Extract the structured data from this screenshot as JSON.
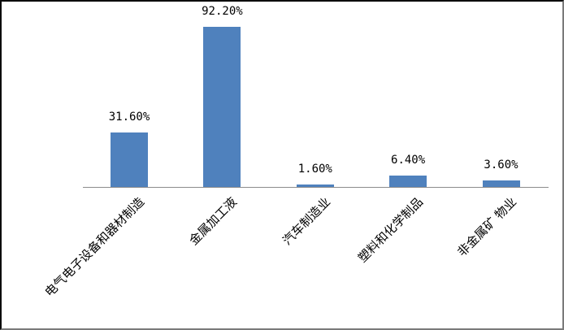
{
  "chart_data": {
    "type": "bar",
    "title": "",
    "xlabel": "",
    "ylabel": "",
    "categories": [
      "电气电子设备和器材制造",
      "金属加工液",
      "汽车制造业",
      "塑料和化学制品",
      "非金属矿 物业"
    ],
    "values": [
      31.6,
      92.2,
      1.6,
      6.4,
      3.6
    ],
    "data_labels": [
      "31.60%",
      "92.20%",
      "1.60%",
      "6.40%",
      "3.60%"
    ],
    "value_format": "percent",
    "ylim": [
      0,
      100
    ],
    "grid": false,
    "legend": false,
    "category_label_rotation_deg": 45,
    "colors": {
      "bar": "#4F81BD",
      "axis_line": "#8C8C8C",
      "text": "#000000",
      "background": "#FFFFFF"
    }
  }
}
